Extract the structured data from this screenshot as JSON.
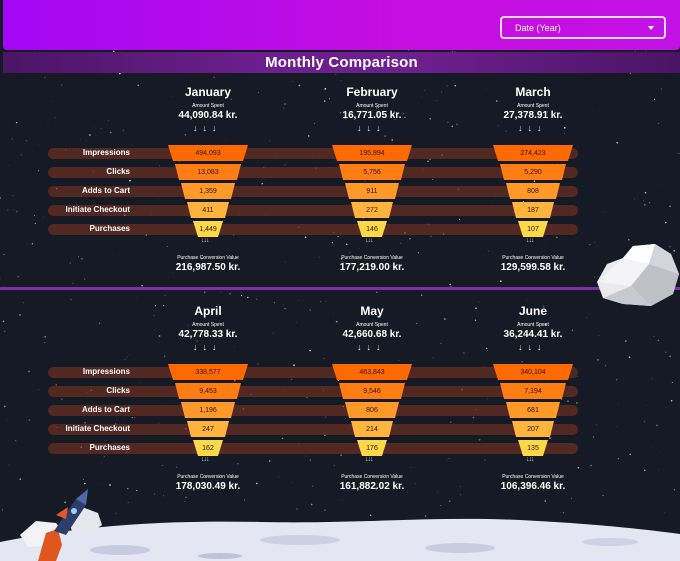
{
  "date_filter": {
    "label": "Date (Year)"
  },
  "title": "Monthly Comparison",
  "row_labels": [
    "Impressions",
    "Clicks",
    "Adds to Cart",
    "Initiate Checkout",
    "Purchases"
  ],
  "labels": {
    "amount_spent": "Amount Spent",
    "purchase_value": "Purchase Conversion Value"
  },
  "months": [
    {
      "name": "January",
      "spent": "44,090.84 kr.",
      "values": [
        "494,093",
        "13,083",
        "1,359",
        "411",
        "1,449"
      ],
      "pcv": "216,987.50 kr."
    },
    {
      "name": "February",
      "spent": "16,771.05 kr.",
      "values": [
        "195,894",
        "5,756",
        "911",
        "272",
        "146"
      ],
      "pcv": "177,219.00 kr."
    },
    {
      "name": "March",
      "spent": "27,378.91 kr.",
      "values": [
        "274,423",
        "5,290",
        "808",
        "187",
        "107"
      ],
      "pcv": "129,599.58 kr."
    },
    {
      "name": "April",
      "spent": "42,778.33 kr.",
      "values": [
        "338,577",
        "9,453",
        "1,196",
        "247",
        "162"
      ],
      "pcv": "178,030.49 kr."
    },
    {
      "name": "May",
      "spent": "42,660.68 kr.",
      "values": [
        "463,843",
        "9,546",
        "806",
        "214",
        "176"
      ],
      "pcv": "161,882.02 kr."
    },
    {
      "name": "June",
      "spent": "36,244.41 kr.",
      "values": [
        "340,104",
        "7,194",
        "681",
        "207",
        "135"
      ],
      "pcv": "106,396.46 kr."
    }
  ],
  "colors": {
    "header": "#b30ef0",
    "title_bar": "#6e1f8f",
    "funnel": [
      "#ff6a00",
      "#ff7d12",
      "#ff9a2a",
      "#ffb43d",
      "#ffd84a"
    ]
  },
  "icons": [
    "caret-down-icon",
    "rocket-icon",
    "cloud-icon",
    "moon-surface"
  ]
}
